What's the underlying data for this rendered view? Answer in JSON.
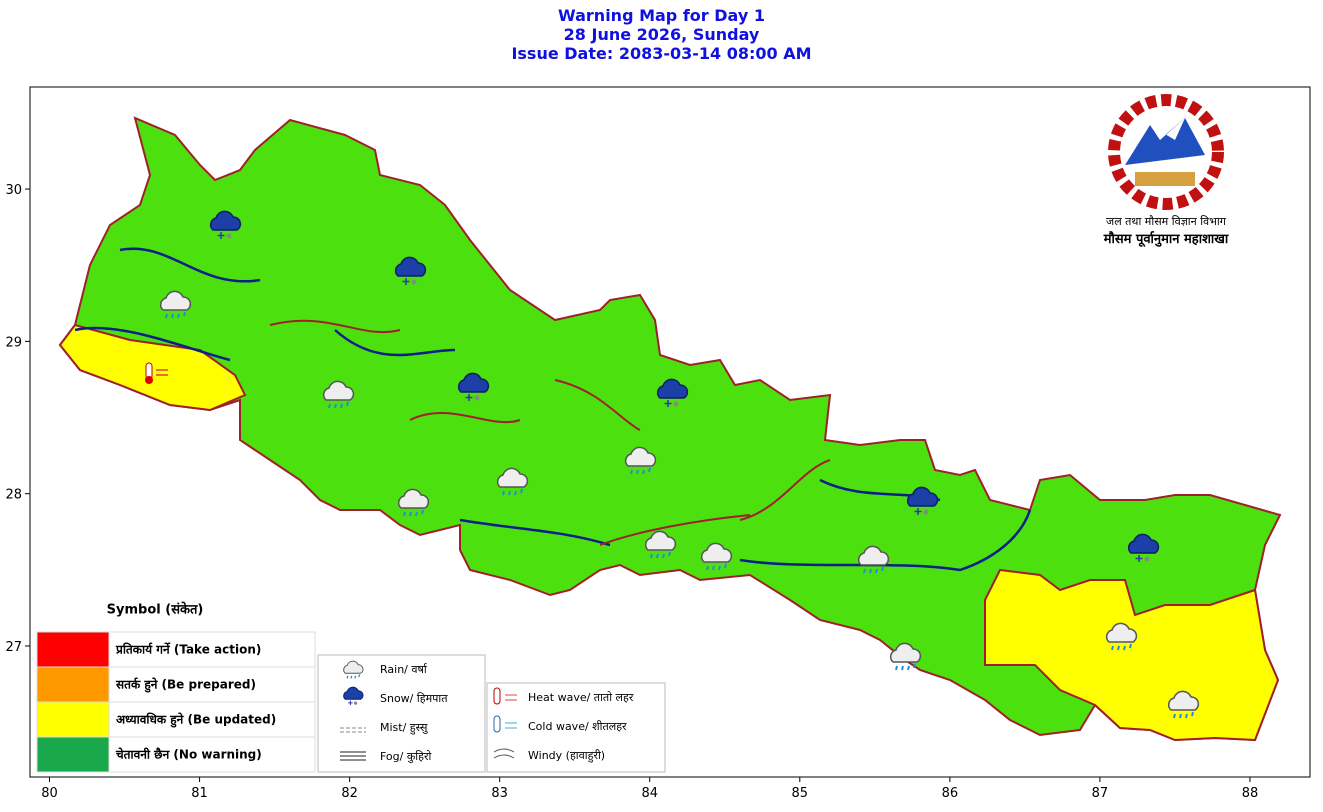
{
  "map": {
    "title": [
      "Warning Map for Day 1",
      "28 June 2026, Sunday",
      "Issue Date: 2083-03-14 08:00 AM"
    ],
    "xlim": [
      79.87,
      88.4
    ],
    "ylim": [
      26.14,
      30.67
    ],
    "xticks": [
      80,
      81,
      82,
      83,
      84,
      85,
      86,
      87,
      88
    ],
    "yticks": [
      27,
      28,
      29,
      30
    ],
    "logo_text": [
      "जल तथा मौसम विज्ञान विभाग",
      "मौसम पूर्वानुमान महाशाखा"
    ],
    "legend_title": "Symbol (संकेत)",
    "warning_levels": [
      {
        "label": "प्रतिकार्य गर्ने (Take action)",
        "color": "#ff0000"
      },
      {
        "label": "सतर्क हुने (Be prepared)",
        "color": "#ff9900"
      },
      {
        "label": "अध्यावधिक हुने (Be updated)",
        "color": "#ffff00"
      },
      {
        "label": "चेतावनी छैन (No warning)",
        "color": "#19a84b"
      }
    ],
    "symbols": [
      "Rain/ वर्षा",
      "Snow/ हिमपात",
      "Mist/ हुस्सु",
      "Fog/ कुहिरो",
      "Heat wave/ तातो लहर",
      "Cold wave/ शीतलहर",
      "Windy (हावाहुरी)"
    ]
  }
}
